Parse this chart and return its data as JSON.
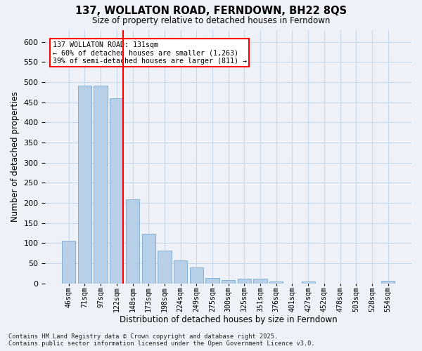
{
  "title": "137, WOLLATON ROAD, FERNDOWN, BH22 8QS",
  "subtitle": "Size of property relative to detached houses in Ferndown",
  "xlabel": "Distribution of detached houses by size in Ferndown",
  "ylabel": "Number of detached properties",
  "categories": [
    "46sqm",
    "71sqm",
    "97sqm",
    "122sqm",
    "148sqm",
    "173sqm",
    "198sqm",
    "224sqm",
    "249sqm",
    "275sqm",
    "300sqm",
    "325sqm",
    "351sqm",
    "376sqm",
    "401sqm",
    "427sqm",
    "452sqm",
    "478sqm",
    "503sqm",
    "528sqm",
    "554sqm"
  ],
  "values": [
    106,
    492,
    492,
    460,
    208,
    124,
    82,
    57,
    39,
    14,
    8,
    11,
    11,
    4,
    0,
    5,
    0,
    0,
    0,
    0,
    6
  ],
  "bar_color": "#b8cfe8",
  "bar_edgecolor": "#7aaad0",
  "grid_color": "#c8d8ea",
  "background_color": "#eef2f8",
  "fig_background_color": "#eef2f8",
  "annotation_text": "137 WOLLATON ROAD: 131sqm\n← 60% of detached houses are smaller (1,263)\n39% of semi-detached houses are larger (811) →",
  "vline_x": 3.42,
  "footer": "Contains HM Land Registry data © Crown copyright and database right 2025.\nContains public sector information licensed under the Open Government Licence v3.0.",
  "ylim": [
    0,
    630
  ],
  "yticks": [
    0,
    50,
    100,
    150,
    200,
    250,
    300,
    350,
    400,
    450,
    500,
    550,
    600
  ]
}
